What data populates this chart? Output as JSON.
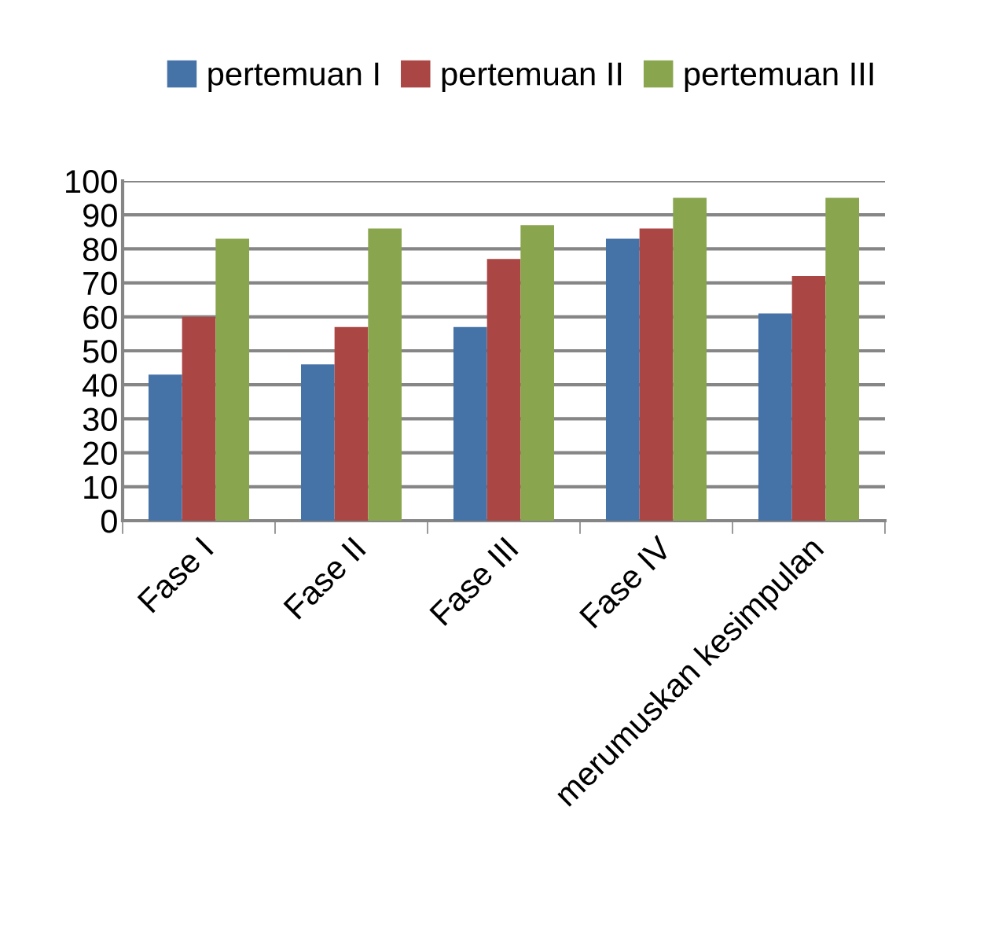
{
  "chart_data": {
    "type": "bar",
    "categories": [
      "Fase I",
      "Fase II",
      "Fase III",
      "Fase IV",
      "merumuskan kesimpulan"
    ],
    "series": [
      {
        "name": "pertemuan I",
        "color": "#4572a7",
        "values": [
          43,
          46,
          57,
          83,
          61
        ]
      },
      {
        "name": "pertemuan II",
        "color": "#aa4643",
        "values": [
          60,
          57,
          77,
          86,
          72
        ]
      },
      {
        "name": "pertemuan III",
        "color": "#89a54e",
        "values": [
          83,
          86,
          87,
          95,
          95
        ]
      }
    ],
    "ylim": [
      0,
      100
    ],
    "yticks": [
      0,
      10,
      20,
      30,
      40,
      50,
      60,
      70,
      80,
      90,
      100
    ],
    "grid": "y",
    "legend": "top"
  }
}
